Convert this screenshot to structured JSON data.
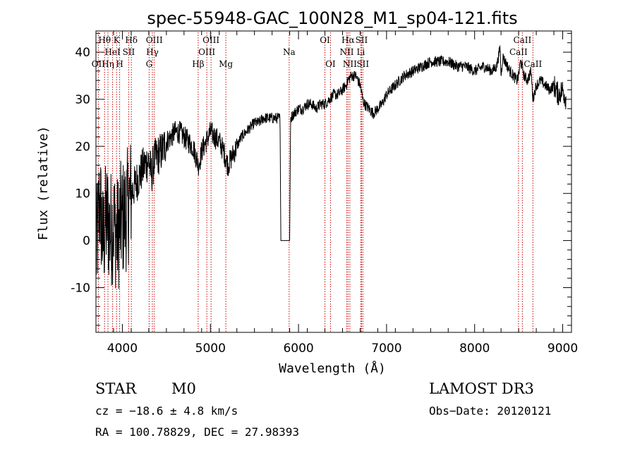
{
  "chart_data": {
    "type": "line",
    "title": "spec-55948-GAC_100N28_M1_sp04-121.fits",
    "xlabel": "Wavelength (Å)",
    "ylabel": "Flux (relative)",
    "xlim": [
      3700,
      9100
    ],
    "ylim": [
      -19.5,
      44.5
    ],
    "xticks": [
      4000,
      5000,
      6000,
      7000,
      8000,
      9000
    ],
    "yticks": [
      -10,
      0,
      10,
      20,
      30,
      40
    ],
    "spectrum_anchor_points": {
      "x": [
        3700,
        3720,
        3740,
        3760,
        3780,
        3800,
        3830,
        3860,
        3900,
        3940,
        3980,
        4020,
        4060,
        4100,
        4150,
        4200,
        4250,
        4300,
        4330,
        4360,
        4400,
        4450,
        4500,
        4550,
        4600,
        4650,
        4700,
        4750,
        4800,
        4850,
        4860,
        4880,
        4900,
        4950,
        5000,
        5050,
        5100,
        5150,
        5180,
        5200,
        5250,
        5300,
        5350,
        5400,
        5450,
        5500,
        5550,
        5600,
        5650,
        5700,
        5750,
        5790,
        5800,
        5900,
        5910,
        5950,
        6000,
        6050,
        6100,
        6150,
        6200,
        6250,
        6300,
        6350,
        6400,
        6450,
        6500,
        6540,
        6563,
        6600,
        6650,
        6700,
        6730,
        6750,
        6800,
        6850,
        6900,
        6950,
        7000,
        7050,
        7100,
        7150,
        7200,
        7300,
        7400,
        7500,
        7600,
        7700,
        7800,
        7900,
        8000,
        8100,
        8200,
        8250,
        8290,
        8300,
        8320,
        8400,
        8480,
        8500,
        8520,
        8540,
        8560,
        8600,
        8640,
        8662,
        8700,
        8750,
        8800,
        8850,
        8900,
        8950,
        9000,
        9040
      ],
      "y": [
        -3,
        2,
        8,
        5,
        -1,
        3,
        5,
        2,
        4,
        1,
        4,
        5,
        7,
        10,
        12,
        14,
        16,
        17,
        14,
        17,
        18,
        19,
        21,
        22,
        23,
        23,
        22,
        21,
        20,
        17,
        16,
        17,
        19,
        21,
        23,
        22,
        21,
        19,
        17,
        16,
        18,
        20,
        22,
        23,
        24,
        25,
        25,
        26,
        26,
        26,
        26,
        26,
        0,
        0,
        26,
        27,
        28,
        28,
        29,
        29,
        28,
        29,
        29,
        30,
        31,
        31,
        32,
        33,
        34,
        35,
        35,
        33,
        30,
        29,
        28,
        27,
        28,
        29,
        31,
        32,
        33,
        34,
        35,
        36,
        37,
        38,
        38,
        38,
        37,
        37,
        36,
        37,
        36,
        37,
        41,
        35,
        39,
        36,
        34,
        35,
        38,
        37,
        35,
        34,
        36,
        30,
        33,
        34,
        33,
        32,
        33,
        31,
        32,
        30
      ]
    },
    "spectral_lines": [
      {
        "name": "Hθ",
        "wavelength": 3798,
        "row": 0
      },
      {
        "name": "Hη",
        "wavelength": 3836,
        "row": 2
      },
      {
        "name": "OII",
        "wavelength": 3727,
        "row": 2
      },
      {
        "name": "HeI",
        "wavelength": 3889,
        "row": 1
      },
      {
        "name": "K",
        "wavelength": 3934,
        "row": 0
      },
      {
        "name": "H",
        "wavelength": 3969,
        "row": 2
      },
      {
        "name": "SII",
        "wavelength": 4072,
        "row": 1
      },
      {
        "name": "Hδ",
        "wavelength": 4102,
        "row": 0
      },
      {
        "name": "G",
        "wavelength": 4304,
        "row": 2
      },
      {
        "name": "Hγ",
        "wavelength": 4341,
        "row": 1
      },
      {
        "name": "OIII",
        "wavelength": 4363,
        "row": 0
      },
      {
        "name": "Hβ",
        "wavelength": 4861,
        "row": 2
      },
      {
        "name": "OIII",
        "wavelength": 4959,
        "row": 1
      },
      {
        "name": "OIII",
        "wavelength": 5007,
        "row": 0
      },
      {
        "name": "Mg",
        "wavelength": 5175,
        "row": 2
      },
      {
        "name": "Na",
        "wavelength": 5894,
        "row": 1
      },
      {
        "name": "OI",
        "wavelength": 6300,
        "row": 0
      },
      {
        "name": "OI",
        "wavelength": 6363,
        "row": 2
      },
      {
        "name": "NII",
        "wavelength": 6548,
        "row": 1
      },
      {
        "name": "Hα",
        "wavelength": 6563,
        "row": 0
      },
      {
        "name": "NII",
        "wavelength": 6583,
        "row": 2
      },
      {
        "name": "SII",
        "wavelength": 6716,
        "row": 0
      },
      {
        "name": "Li",
        "wavelength": 6708,
        "row": 1
      },
      {
        "name": "SII",
        "wavelength": 6731,
        "row": 2
      },
      {
        "name": "CaII",
        "wavelength": 8498,
        "row": 1
      },
      {
        "name": "CaII",
        "wavelength": 8542,
        "row": 0
      },
      {
        "name": "CaII",
        "wavelength": 8662,
        "row": 2
      }
    ],
    "line_color": "#000000",
    "marker_color": "#cc0000"
  },
  "info": {
    "class": "STAR",
    "subclass": "M0",
    "survey": "LAMOST DR3",
    "cz": "cz = −18.6 ± 4.8 km/s",
    "obsdate": "Obs−Date: 20120121",
    "radec": "RA = 100.78829, DEC =  27.98393"
  }
}
